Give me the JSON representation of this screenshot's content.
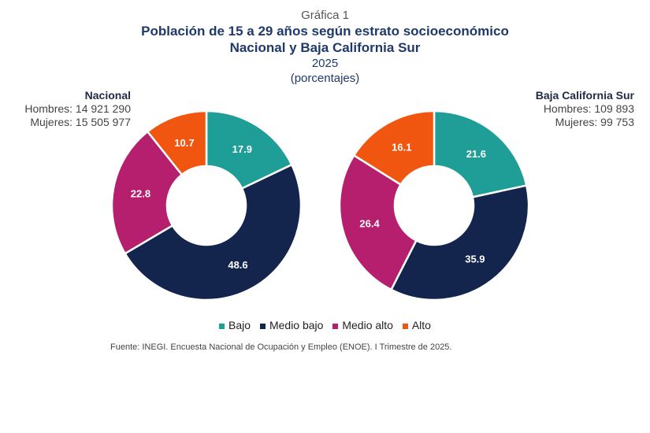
{
  "header": {
    "figure_label": "Gráfica 1",
    "title_line1": "Población de 15 a 29 años según estrato socioeconómico",
    "title_line2": "Nacional y Baja California Sur",
    "year": "2025",
    "unit": "(porcentajes)"
  },
  "panels": [
    {
      "name": "Nacional",
      "hombres": "Hombres: 14 921 290",
      "mujeres": "Mujeres: 15 505 977"
    },
    {
      "name": "Baja California Sur",
      "hombres": "Hombres: 109 893",
      "mujeres": "Mujeres: 99 753"
    }
  ],
  "legend": [
    {
      "label": "Bajo",
      "color": "#1e9e97"
    },
    {
      "label": "Medio bajo",
      "color": "#13244d"
    },
    {
      "label": "Medio alto",
      "color": "#b51f6e"
    },
    {
      "label": "Alto",
      "color": "#f0560f"
    }
  ],
  "source": "Fuente: INEGI. Encuesta Nacional de Ocupación y Empleo (ENOE). I Trimestre de 2025.",
  "chart_data": [
    {
      "type": "pie",
      "subtype": "donut",
      "title": "Nacional",
      "categories": [
        "Bajo",
        "Medio bajo",
        "Medio alto",
        "Alto"
      ],
      "values": [
        17.9,
        48.6,
        22.8,
        10.7
      ],
      "labels": [
        "17.9",
        "48.6",
        "22.8",
        "10.7"
      ]
    },
    {
      "type": "pie",
      "subtype": "donut",
      "title": "Baja California Sur",
      "categories": [
        "Bajo",
        "Medio bajo",
        "Medio alto",
        "Alto"
      ],
      "values": [
        21.6,
        35.9,
        26.4,
        16.1
      ],
      "labels": [
        "21.6",
        "35.9",
        "26.4",
        "16.1"
      ]
    }
  ]
}
